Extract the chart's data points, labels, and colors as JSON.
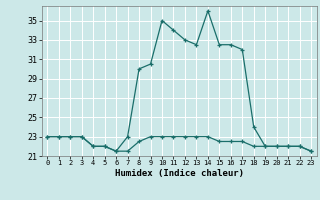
{
  "title": "",
  "xlabel": "Humidex (Indice chaleur)",
  "background_color": "#cce8e8",
  "line_color": "#1a6e6a",
  "x_values": [
    0,
    1,
    2,
    3,
    4,
    5,
    6,
    7,
    8,
    9,
    10,
    11,
    12,
    13,
    14,
    15,
    16,
    17,
    18,
    19,
    20,
    21,
    22,
    23
  ],
  "y_upper": [
    23,
    23,
    23,
    23,
    22,
    22,
    21.5,
    23,
    30,
    30.5,
    35,
    34,
    33,
    32.5,
    36,
    32.5,
    32.5,
    32,
    24,
    22,
    22,
    22,
    22,
    21.5
  ],
  "y_lower": [
    23,
    23,
    23,
    23,
    22,
    22,
    21.5,
    21.5,
    22.5,
    23,
    23,
    23,
    23,
    23,
    23,
    22.5,
    22.5,
    22.5,
    22,
    22,
    22,
    22,
    22,
    21.5
  ],
  "ylim": [
    21,
    36.5
  ],
  "yticks": [
    21,
    23,
    25,
    27,
    29,
    31,
    33,
    35
  ],
  "xlim": [
    -0.5,
    23.5
  ],
  "xtick_fontsize": 5.0,
  "ytick_fontsize": 6.0,
  "xlabel_fontsize": 6.5,
  "grid_color": "#ffffff",
  "grid_linewidth": 0.7
}
